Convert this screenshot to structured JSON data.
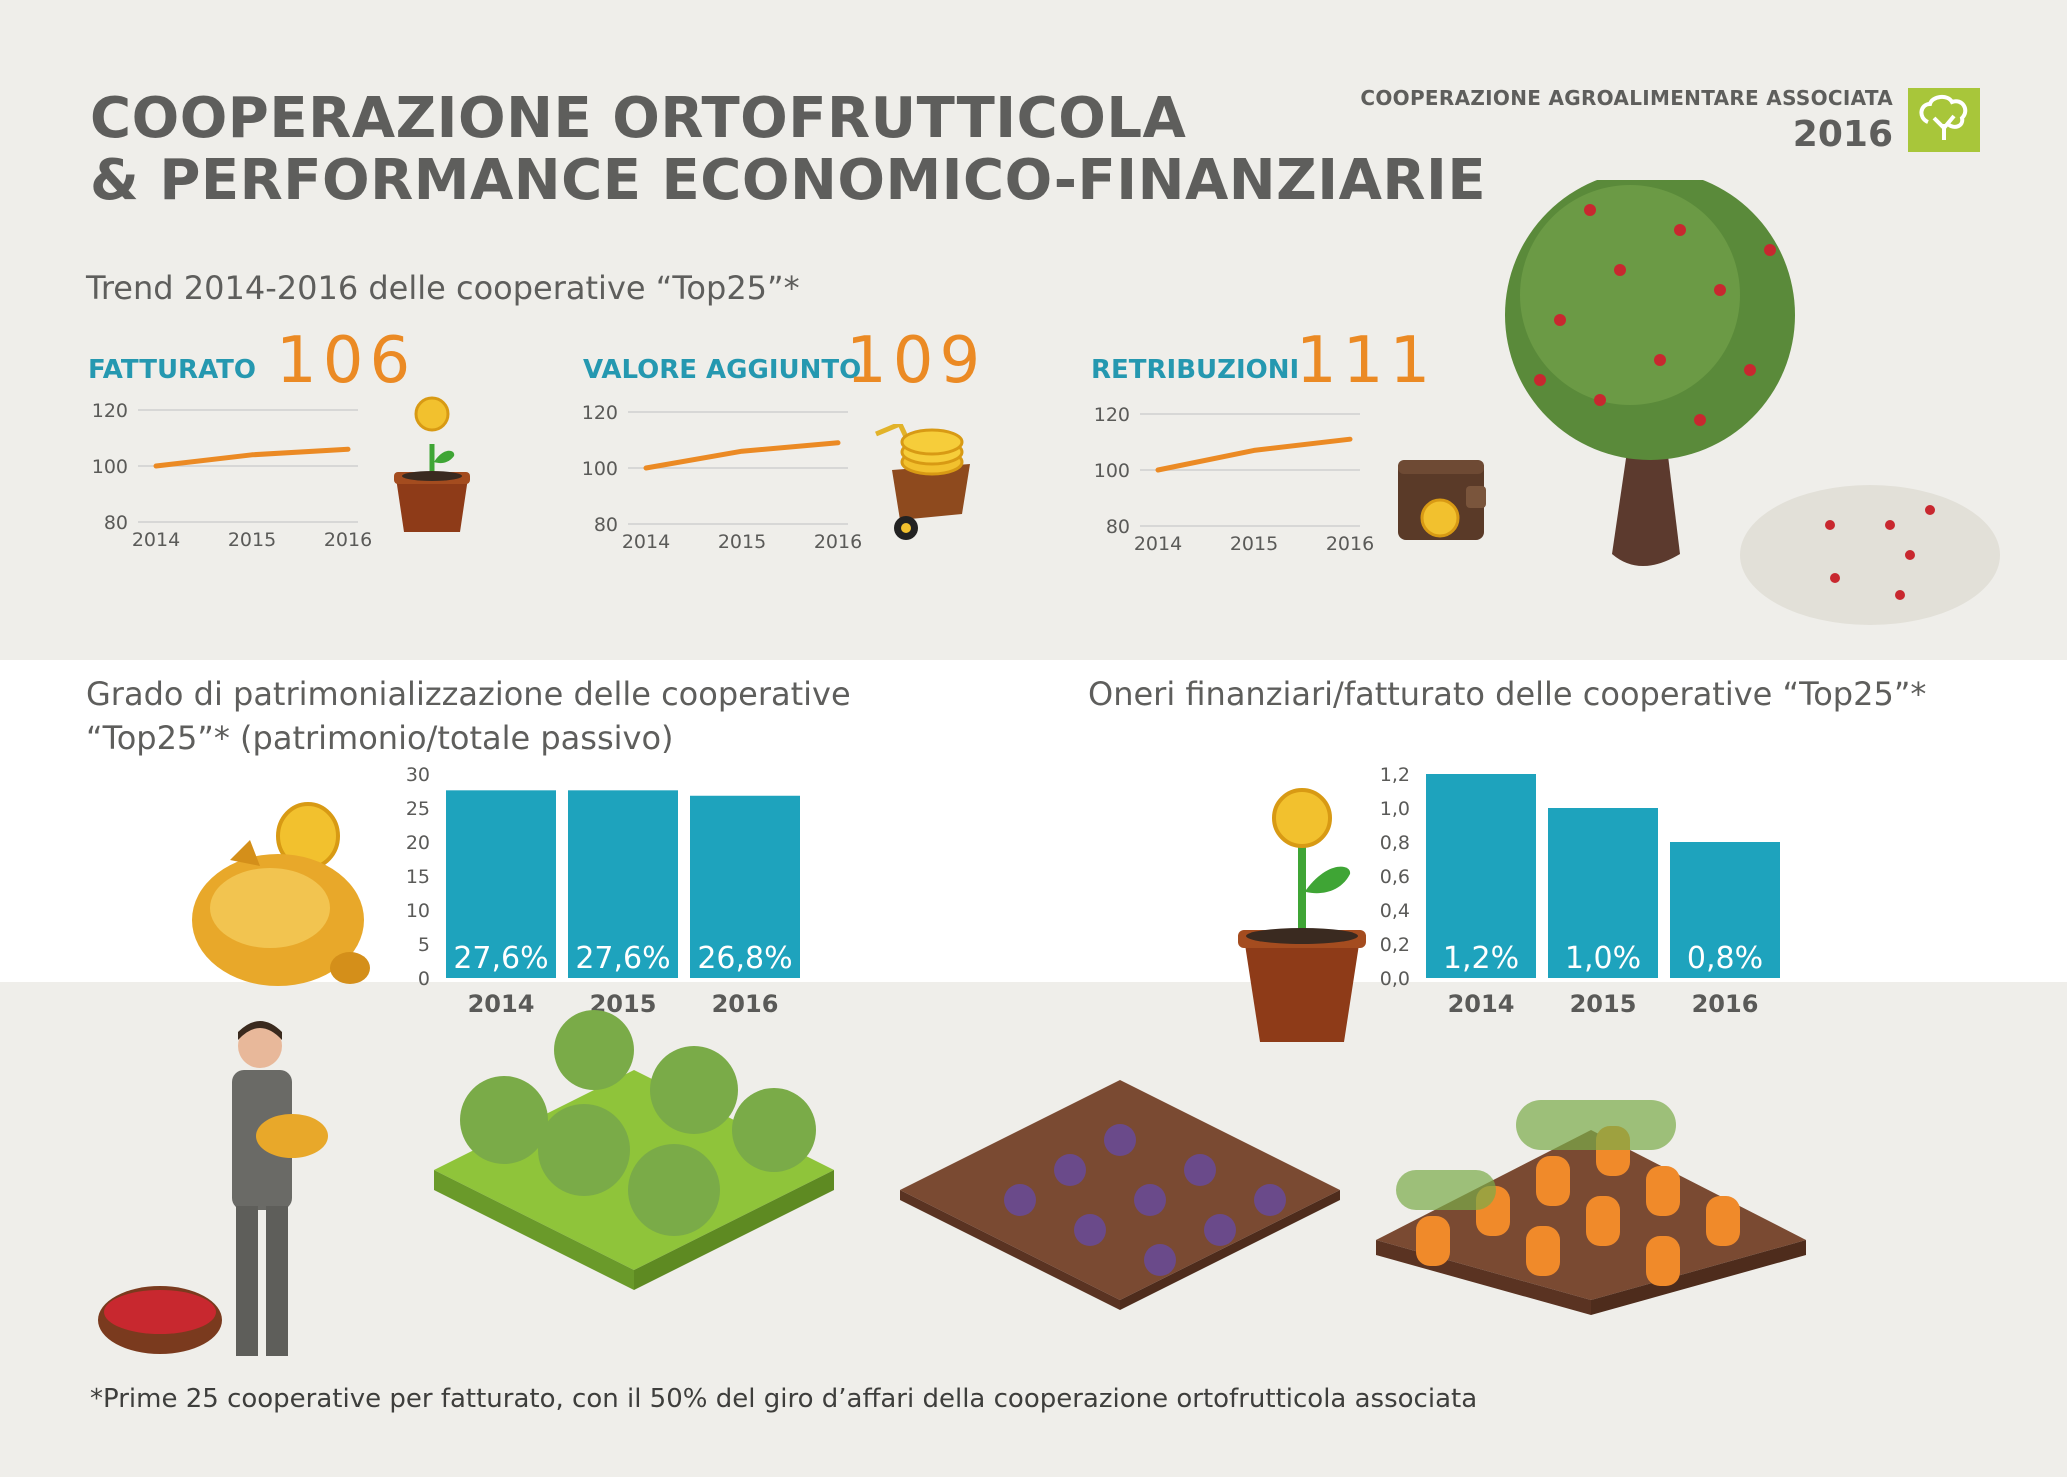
{
  "header": {
    "title_line1": "COOPERAZIONE ORTOFRUTTICOLA",
    "title_line2": "& PERFORMANCE ECONOMICO-FINANZIARIE",
    "org_name": "COOPERAZIONE AGROALIMENTARE ASSOCIATA",
    "year": "2016"
  },
  "trend": {
    "subtitle": "Trend 2014-2016 delle cooperative “Top25”*"
  },
  "patrimonio": {
    "subtitle_line1": "Grado di patrimonializzazione delle cooperative",
    "subtitle_line2": "“Top25”* (patrimonio/totale passivo)"
  },
  "oneri": {
    "subtitle": "Oneri finanziari/fatturato delle cooperative “Top25”*"
  },
  "footnote": "*Prime 25 cooperative per fatturato, con il 50% del giro d’affari della cooperazione ortofrutticola associata",
  "colors": {
    "accent_orange": "#eb8a24",
    "accent_teal": "#1ea3bd",
    "label_teal": "#2598b0",
    "logo_green": "#a8c63a"
  },
  "chart_data": [
    {
      "id": "fatturato",
      "type": "line",
      "label": "FATTURATO",
      "headline": "106",
      "x": [
        "2014",
        "2015",
        "2016"
      ],
      "values": [
        100,
        104,
        106
      ],
      "yticks": [
        "120",
        "100",
        "80"
      ],
      "ylim": [
        80,
        120
      ]
    },
    {
      "id": "valore",
      "type": "line",
      "label": "VALORE AGGIUNTO",
      "headline": "109",
      "x": [
        "2014",
        "2015",
        "2016"
      ],
      "values": [
        100,
        106,
        109
      ],
      "yticks": [
        "120",
        "100",
        "80"
      ],
      "ylim": [
        80,
        120
      ]
    },
    {
      "id": "retribuzioni",
      "type": "line",
      "label": "RETRIBUZIONI",
      "headline": "111",
      "x": [
        "2014",
        "2015",
        "2016"
      ],
      "values": [
        100,
        107,
        111
      ],
      "yticks": [
        "120",
        "100",
        "80"
      ],
      "ylim": [
        80,
        120
      ]
    },
    {
      "id": "patrimonio",
      "type": "bar",
      "categories": [
        "2014",
        "2015",
        "2016"
      ],
      "values": [
        27.6,
        27.6,
        26.8
      ],
      "data_labels": [
        "27,6%",
        "27,6%",
        "26,8%"
      ],
      "yticks": [
        "30",
        "25",
        "20",
        "15",
        "10",
        "5",
        "0"
      ],
      "ylim": [
        0,
        30
      ]
    },
    {
      "id": "oneri",
      "type": "bar",
      "categories": [
        "2014",
        "2015",
        "2016"
      ],
      "values": [
        1.2,
        1.0,
        0.8
      ],
      "data_labels": [
        "1,2%",
        "1,0%",
        "0,8%"
      ],
      "yticks": [
        "1,2",
        "1,0",
        "0,8",
        "0,6",
        "0,4",
        "0,2",
        "0,0"
      ],
      "ylim": [
        0,
        1.2
      ]
    }
  ]
}
